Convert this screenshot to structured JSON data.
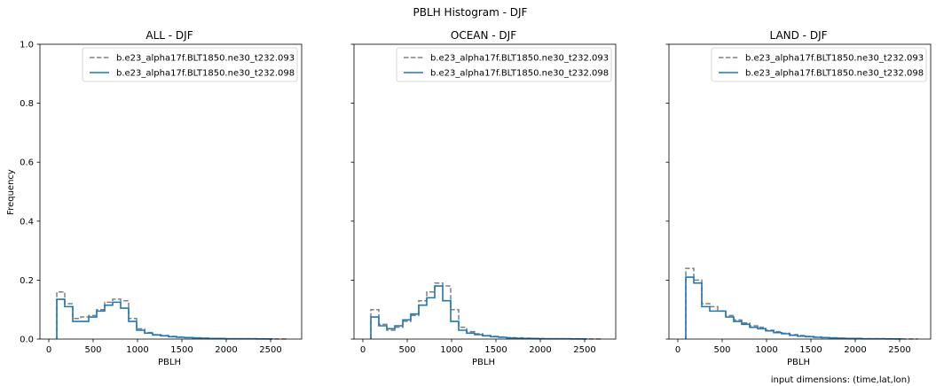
{
  "figure": {
    "title": "PBLH Histogram - DJF",
    "footnote": "input dimensions: (time,lat,lon)"
  },
  "colors": {
    "series_093": "#808080",
    "series_098": "#1f77b4"
  },
  "chart_data": [
    {
      "type": "step-histogram",
      "title": "ALL - DJF",
      "xlabel": "PBLH",
      "ylabel": "Frequency",
      "xlim": [
        -100,
        2850
      ],
      "ylim": [
        0,
        1.0
      ],
      "xticks": [
        0,
        500,
        1000,
        1500,
        2000,
        2500
      ],
      "yticks": [
        "0.0",
        "0.2",
        "0.4",
        "0.6",
        "0.8",
        "1.0"
      ],
      "legend": "top-right",
      "series": [
        {
          "name": "b.e23_alpha17f.BLT1850.ne30_t232.093",
          "style": "dashed",
          "edges": [
            90,
            180,
            270,
            360,
            450,
            540,
            630,
            720,
            810,
            900,
            990,
            1080,
            1170,
            1260,
            1350,
            1440,
            1530,
            1620,
            1710,
            1800,
            1890,
            1980,
            2070,
            2160,
            2250,
            2340,
            2430,
            2520,
            2610,
            2700
          ],
          "values": [
            0.16,
            0.12,
            0.07,
            0.075,
            0.08,
            0.1,
            0.125,
            0.135,
            0.13,
            0.07,
            0.035,
            0.022,
            0.015,
            0.012,
            0.009,
            0.007,
            0.005,
            0.004,
            0.003,
            0.002,
            0.002,
            0.001,
            0.001,
            0.001,
            0.001,
            0.001,
            0.0005,
            0.0005,
            0.0005
          ]
        },
        {
          "name": "b.e23_alpha17f.BLT1850.ne30_t232.098",
          "style": "solid",
          "edges": [
            90,
            180,
            270,
            360,
            450,
            540,
            630,
            720,
            810,
            900,
            990,
            1080,
            1170,
            1260,
            1350,
            1440,
            1530,
            1620,
            1710,
            1800,
            1890,
            1980,
            2070,
            2160,
            2250,
            2340,
            2430,
            2520
          ],
          "values": [
            0.135,
            0.11,
            0.06,
            0.06,
            0.075,
            0.095,
            0.115,
            0.125,
            0.105,
            0.06,
            0.03,
            0.02,
            0.014,
            0.011,
            0.008,
            0.006,
            0.005,
            0.004,
            0.003,
            0.002,
            0.002,
            0.001,
            0.001,
            0.001,
            0.001,
            0.0005,
            0.0005
          ]
        }
      ]
    },
    {
      "type": "step-histogram",
      "title": "OCEAN - DJF",
      "xlabel": "PBLH",
      "ylabel": "",
      "xlim": [
        -100,
        2850
      ],
      "ylim": [
        0,
        1.0
      ],
      "xticks": [
        0,
        500,
        1000,
        1500,
        2000,
        2500
      ],
      "yticks": [],
      "legend": "top-right",
      "series": [
        {
          "name": "b.e23_alpha17f.BLT1850.ne30_t232.093",
          "style": "dashed",
          "edges": [
            90,
            180,
            270,
            360,
            450,
            540,
            630,
            720,
            810,
            900,
            990,
            1080,
            1170,
            1260,
            1350,
            1440,
            1530,
            1620,
            1710,
            1800,
            1890,
            1980,
            2070,
            2160,
            2250,
            2340,
            2430,
            2520,
            2610,
            2700
          ],
          "values": [
            0.1,
            0.05,
            0.03,
            0.04,
            0.06,
            0.08,
            0.13,
            0.16,
            0.19,
            0.18,
            0.1,
            0.04,
            0.025,
            0.018,
            0.012,
            0.009,
            0.007,
            0.005,
            0.004,
            0.003,
            0.002,
            0.002,
            0.001,
            0.001,
            0.001,
            0.001,
            0.0005,
            0.0005,
            0.0005
          ]
        },
        {
          "name": "b.e23_alpha17f.BLT1850.ne30_t232.098",
          "style": "solid",
          "edges": [
            90,
            180,
            270,
            360,
            450,
            540,
            630,
            720,
            810,
            900,
            990,
            1080,
            1170,
            1260,
            1350,
            1440,
            1530,
            1620,
            1710,
            1800,
            1890,
            1980,
            2070,
            2160,
            2250,
            2340,
            2430,
            2520
          ],
          "values": [
            0.075,
            0.045,
            0.035,
            0.045,
            0.065,
            0.085,
            0.115,
            0.14,
            0.18,
            0.13,
            0.06,
            0.03,
            0.02,
            0.015,
            0.011,
            0.008,
            0.006,
            0.004,
            0.003,
            0.002,
            0.002,
            0.001,
            0.001,
            0.001,
            0.001,
            0.0005,
            0.0005
          ]
        }
      ]
    },
    {
      "type": "step-histogram",
      "title": "LAND - DJF",
      "xlabel": "PBLH",
      "ylabel": "",
      "xlim": [
        -100,
        2850
      ],
      "ylim": [
        0,
        1.0
      ],
      "xticks": [
        0,
        500,
        1000,
        1500,
        2000,
        2500
      ],
      "yticks": [],
      "legend": "top-right",
      "series": [
        {
          "name": "b.e23_alpha17f.BLT1850.ne30_t232.093",
          "style": "dashed",
          "edges": [
            90,
            180,
            270,
            360,
            450,
            540,
            630,
            720,
            810,
            900,
            990,
            1080,
            1170,
            1260,
            1350,
            1440,
            1530,
            1620,
            1710,
            1800,
            1890,
            1980,
            2070,
            2160,
            2250,
            2340,
            2430,
            2520,
            2610,
            2700
          ],
          "values": [
            0.24,
            0.2,
            0.12,
            0.11,
            0.095,
            0.08,
            0.065,
            0.055,
            0.045,
            0.04,
            0.03,
            0.025,
            0.02,
            0.015,
            0.012,
            0.009,
            0.007,
            0.005,
            0.004,
            0.003,
            0.002,
            0.002,
            0.001,
            0.001,
            0.001,
            0.001,
            0.0005,
            0.0005,
            0.0005
          ]
        },
        {
          "name": "b.e23_alpha17f.BLT1850.ne30_t232.098",
          "style": "solid",
          "edges": [
            90,
            180,
            270,
            360,
            450,
            540,
            630,
            720,
            810,
            900,
            990,
            1080,
            1170,
            1260,
            1350,
            1440,
            1530,
            1620,
            1710,
            1800,
            1890,
            1980,
            2070,
            2160,
            2250,
            2340,
            2430,
            2520
          ],
          "values": [
            0.21,
            0.19,
            0.11,
            0.095,
            0.095,
            0.075,
            0.06,
            0.05,
            0.04,
            0.035,
            0.028,
            0.022,
            0.018,
            0.013,
            0.01,
            0.008,
            0.006,
            0.005,
            0.004,
            0.003,
            0.002,
            0.002,
            0.001,
            0.001,
            0.001,
            0.0005,
            0.0005
          ]
        }
      ]
    }
  ]
}
